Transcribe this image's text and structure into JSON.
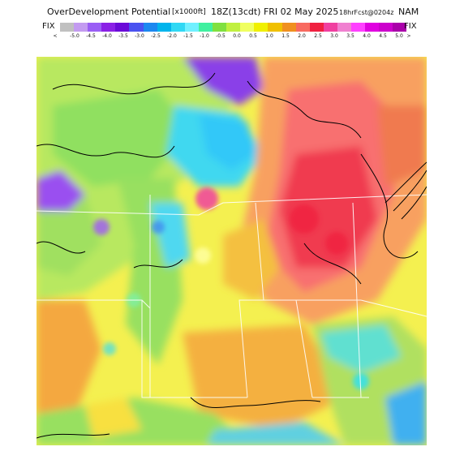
{
  "title": {
    "product": "OverDevelopment Potential",
    "units": "[x1000ft]",
    "valid": "18Z(13cdt) FRI 02 May 2025",
    "forecast": "18hrFcst@0204z",
    "model": "NAM"
  },
  "legend": {
    "left_label": "FIX",
    "right_label": "FIX",
    "lt_symbol": "<",
    "gt_symbol": ">",
    "ticks": [
      "-5.0",
      "-4.5",
      "-4.0",
      "-3.5",
      "-3.0",
      "-2.5",
      "-2.0",
      "-1.5",
      "-1.0",
      "-0.5",
      "0.0",
      "0.5",
      "1.0",
      "1.5",
      "2.0",
      "2.5",
      "3.0",
      "3.5",
      "4.0",
      "4.5",
      "5.0"
    ],
    "colors": [
      "#c0c0c0",
      "#c39bf0",
      "#9a5ef5",
      "#8a20e6",
      "#6a0ad8",
      "#4a52f0",
      "#1c88f0",
      "#00b4ec",
      "#30d8f4",
      "#70f0ff",
      "#40f0a0",
      "#80e040",
      "#c0f040",
      "#f0ff60",
      "#f0f000",
      "#f0c000",
      "#f09020",
      "#f86a60",
      "#f02040",
      "#f040a0",
      "#f080d0",
      "#ff40ff",
      "#e000e0",
      "#cc00cc",
      "#aa00aa"
    ]
  }
}
